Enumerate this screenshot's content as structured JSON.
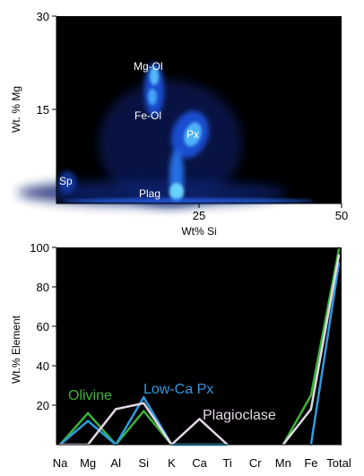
{
  "chart_data": [
    {
      "type": "heatmap",
      "xlabel": "Wt% Si",
      "ylabel": "Wt. % Mg",
      "xlim": [
        0,
        50
      ],
      "ylim": [
        0,
        30
      ],
      "x_ticks": [
        "25",
        "50"
      ],
      "y_ticks": [
        "30",
        "15"
      ],
      "annotations": [
        {
          "text": "Mg-Ol",
          "x": 18,
          "y": 20
        },
        {
          "text": "Fe-Ol",
          "x": 17,
          "y": 14
        },
        {
          "text": "Px",
          "x": 25,
          "y": 10
        },
        {
          "text": "Plag",
          "x": 17,
          "y": 1
        },
        {
          "text": "Sp",
          "x": 1,
          "y": 3
        }
      ],
      "background": "#000000",
      "colormap": [
        "#0a1a55",
        "#1f4fd8",
        "#35a8ff",
        "#8fe6ff"
      ]
    },
    {
      "type": "line",
      "categories": [
        "Na",
        "Mg",
        "Al",
        "Si",
        "K",
        "Ca",
        "Ti",
        "Cr",
        "Mn",
        "Fe",
        "Total"
      ],
      "ylabel": "Wt.% Element",
      "xlabel": "",
      "ylim": [
        0,
        100
      ],
      "y_ticks": [
        "20",
        "40",
        "60",
        "80",
        "100"
      ],
      "series": [
        {
          "name": "Olivine",
          "color": "#3db339",
          "values": [
            0,
            16,
            0,
            17,
            0,
            0,
            0,
            null,
            0,
            25,
            99
          ]
        },
        {
          "name": "Low-Ca Px",
          "color": "#2f9be0",
          "values": [
            0,
            12,
            0,
            24,
            0,
            0,
            0,
            null,
            null,
            0,
            92
          ]
        },
        {
          "name": "Plagioclase",
          "color": "#e4d6e6",
          "values": [
            0,
            0,
            18,
            21,
            0,
            13,
            0,
            null,
            0,
            18,
            96
          ]
        }
      ],
      "background": "#000000"
    }
  ]
}
